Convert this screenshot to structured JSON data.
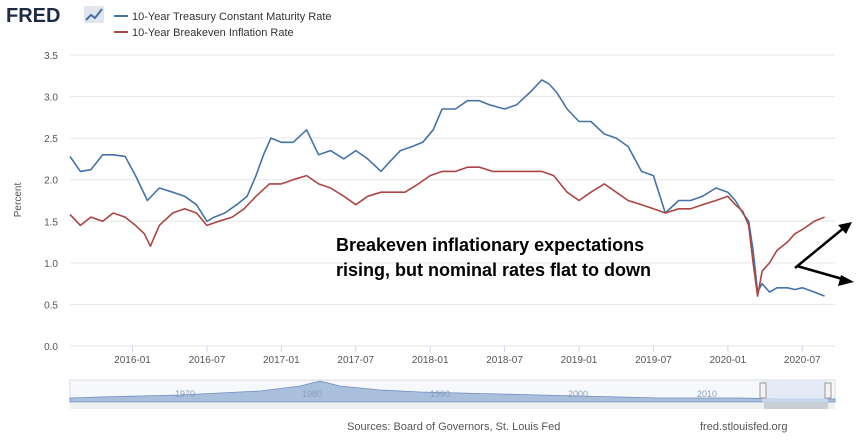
{
  "logo": {
    "text": "FRED"
  },
  "colors": {
    "treasury": "#4572a7",
    "breakeven": "#aa4643",
    "grid": "#e6e6e6",
    "navFill": "#a9bfdc"
  },
  "footer": {
    "sources": "Sources: Board of Governors, St. Louis Fed",
    "site": "fred.stlouisfed.org"
  },
  "annotation": {
    "line1": "Breakeven inflationary expectations",
    "line2": "rising, but nominal rates flat to down"
  },
  "navigator": {
    "labels": [
      "1970",
      "1980",
      "1990",
      "2000",
      "2010"
    ]
  },
  "chart_data": {
    "type": "line",
    "title": "",
    "xlabel": "",
    "ylabel": "Percent",
    "ylim": [
      0,
      3.5
    ],
    "yticks": [
      "0.0",
      "0.5",
      "1.0",
      "1.5",
      "2.0",
      "2.5",
      "3.0",
      "3.5"
    ],
    "xlim": [
      "2015-08",
      "2020-08"
    ],
    "xticks": [
      "2016-01",
      "2016-07",
      "2017-01",
      "2017-07",
      "2018-01",
      "2018-07",
      "2019-01",
      "2019-07",
      "2020-01",
      "2020-07"
    ],
    "grid": true,
    "legend": "top-left",
    "series": [
      {
        "name": "10-Year Treasury Constant Maturity Rate",
        "color": "#4572a7",
        "x": [
          2015.58,
          2015.65,
          2015.72,
          2015.8,
          2015.87,
          2015.95,
          2016.02,
          2016.1,
          2016.18,
          2016.27,
          2016.35,
          2016.43,
          2016.5,
          2016.55,
          2016.62,
          2016.7,
          2016.77,
          2016.83,
          2016.88,
          2016.93,
          2017.0,
          2017.08,
          2017.17,
          2017.25,
          2017.33,
          2017.42,
          2017.5,
          2017.58,
          2017.67,
          2017.72,
          2017.8,
          2017.88,
          2017.95,
          2018.02,
          2018.08,
          2018.17,
          2018.25,
          2018.33,
          2018.4,
          2018.5,
          2018.58,
          2018.67,
          2018.75,
          2018.8,
          2018.85,
          2018.92,
          2019.0,
          2019.08,
          2019.17,
          2019.25,
          2019.33,
          2019.42,
          2019.5,
          2019.58,
          2019.67,
          2019.75,
          2019.83,
          2019.92,
          2020.0,
          2020.05,
          2020.1,
          2020.14,
          2020.17,
          2020.2,
          2020.23,
          2020.28,
          2020.33,
          2020.4,
          2020.45,
          2020.5,
          2020.58,
          2020.65
        ],
        "values": [
          2.28,
          2.1,
          2.12,
          2.3,
          2.3,
          2.28,
          2.05,
          1.75,
          1.9,
          1.85,
          1.8,
          1.7,
          1.5,
          1.55,
          1.6,
          1.7,
          1.8,
          2.05,
          2.3,
          2.5,
          2.45,
          2.45,
          2.6,
          2.3,
          2.35,
          2.25,
          2.35,
          2.25,
          2.1,
          2.2,
          2.35,
          2.4,
          2.45,
          2.6,
          2.85,
          2.85,
          2.95,
          2.95,
          2.9,
          2.85,
          2.9,
          3.05,
          3.2,
          3.15,
          3.05,
          2.85,
          2.7,
          2.7,
          2.55,
          2.5,
          2.4,
          2.1,
          2.05,
          1.6,
          1.75,
          1.75,
          1.8,
          1.9,
          1.85,
          1.75,
          1.6,
          1.5,
          1.15,
          0.65,
          0.75,
          0.65,
          0.7,
          0.7,
          0.68,
          0.7,
          0.65,
          0.6
        ]
      },
      {
        "name": "10-Year Breakeven Inflation Rate",
        "color": "#aa4643",
        "x": [
          2015.58,
          2015.65,
          2015.72,
          2015.8,
          2015.87,
          2015.95,
          2016.02,
          2016.08,
          2016.12,
          2016.18,
          2016.27,
          2016.35,
          2016.43,
          2016.5,
          2016.58,
          2016.67,
          2016.75,
          2016.83,
          2016.92,
          2017.0,
          2017.08,
          2017.17,
          2017.25,
          2017.33,
          2017.42,
          2017.5,
          2017.58,
          2017.67,
          2017.75,
          2017.83,
          2017.92,
          2018.0,
          2018.08,
          2018.17,
          2018.25,
          2018.33,
          2018.42,
          2018.5,
          2018.58,
          2018.67,
          2018.75,
          2018.83,
          2018.92,
          2019.0,
          2019.08,
          2019.17,
          2019.25,
          2019.33,
          2019.42,
          2019.5,
          2019.58,
          2019.67,
          2019.75,
          2019.83,
          2019.92,
          2020.0,
          2020.05,
          2020.1,
          2020.14,
          2020.17,
          2020.2,
          2020.23,
          2020.28,
          2020.33,
          2020.4,
          2020.45,
          2020.5,
          2020.58,
          2020.65
        ],
        "values": [
          1.58,
          1.45,
          1.55,
          1.5,
          1.6,
          1.55,
          1.45,
          1.35,
          1.2,
          1.45,
          1.6,
          1.65,
          1.6,
          1.45,
          1.5,
          1.55,
          1.65,
          1.8,
          1.95,
          1.95,
          2.0,
          2.05,
          1.95,
          1.9,
          1.8,
          1.7,
          1.8,
          1.85,
          1.85,
          1.85,
          1.95,
          2.05,
          2.1,
          2.1,
          2.15,
          2.15,
          2.1,
          2.1,
          2.1,
          2.1,
          2.1,
          2.05,
          1.85,
          1.75,
          1.85,
          1.95,
          1.85,
          1.75,
          1.7,
          1.65,
          1.6,
          1.65,
          1.65,
          1.7,
          1.75,
          1.8,
          1.7,
          1.62,
          1.45,
          1.0,
          0.6,
          0.9,
          1.0,
          1.15,
          1.25,
          1.35,
          1.4,
          1.5,
          1.55
        ]
      }
    ]
  }
}
